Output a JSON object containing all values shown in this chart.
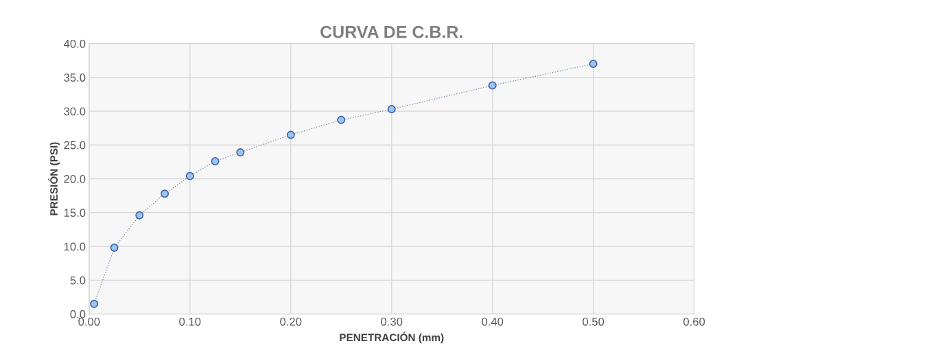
{
  "chart_data": {
    "type": "line",
    "title": "CURVA DE C.B.R.",
    "xlabel": "PENETRACIÓN (mm)",
    "ylabel": "PRESIÓN (PSI)",
    "x": [
      0.005,
      0.025,
      0.05,
      0.075,
      0.1,
      0.125,
      0.15,
      0.2,
      0.25,
      0.3,
      0.4,
      0.5
    ],
    "series": [
      {
        "color": "#9dc3f0",
        "values": [
          1.5,
          9.8,
          14.6,
          17.8,
          20.4,
          22.6,
          23.9,
          26.5,
          28.7,
          30.3,
          33.8,
          37.0
        ]
      }
    ],
    "xlim": [
      0,
      0.6
    ],
    "xticks": [
      {
        "value": 0,
        "label": "0.00"
      },
      {
        "value": 0.1,
        "label": "0.10"
      },
      {
        "value": 0.2,
        "label": "0.20"
      },
      {
        "value": 0.3,
        "label": "0.30"
      },
      {
        "value": 0.4,
        "label": "0.40"
      },
      {
        "value": 0.5,
        "label": "0.50"
      },
      {
        "value": 0.6,
        "label": "0.60"
      }
    ],
    "ylim": [
      0,
      40
    ],
    "yticks": [
      {
        "value": 0,
        "label": "0.0"
      },
      {
        "value": 5,
        "label": "5.0"
      },
      {
        "value": 10,
        "label": "10.0"
      },
      {
        "value": 15,
        "label": "15.0"
      },
      {
        "value": 20,
        "label": "20.0"
      },
      {
        "value": 25,
        "label": "25.0"
      },
      {
        "value": 30,
        "label": "30.0"
      },
      {
        "value": 35,
        "label": "35.0"
      },
      {
        "value": 40,
        "label": "40.0"
      }
    ],
    "grid": true,
    "marker": "circle",
    "line_style": "dotted",
    "legend": false
  }
}
